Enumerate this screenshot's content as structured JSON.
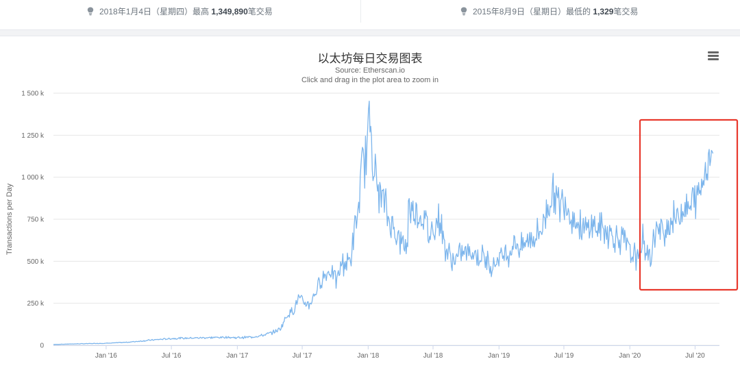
{
  "stats": {
    "high": {
      "prefix": "2018年1月4日（星期四）最高",
      "value": "1,349,890",
      "suffix": "笔交易"
    },
    "low": {
      "prefix": "2015年8月9日（星期日）最低的",
      "value": "1,329",
      "suffix": "笔交易"
    }
  },
  "menu": {
    "icon": "hamburger-menu-icon"
  },
  "chart_data": {
    "type": "line",
    "title": "以太坊每日交易图表",
    "subtitle": "Source: Etherscan.io",
    "hint": "Click and drag in the plot area to zoom in",
    "xlabel": "",
    "ylabel": "Transactions per Day",
    "ylim": [
      0,
      1500000
    ],
    "yticks": [
      0,
      250000,
      500000,
      750000,
      1000000,
      1250000,
      1500000
    ],
    "ytick_labels": [
      "0",
      "250 k",
      "500 k",
      "750 k",
      "1 000 k",
      "1 250 k",
      "1 500 k"
    ],
    "xlim": [
      "2015-08-07",
      "2020-09-07"
    ],
    "xticks": [
      "2016-01-01",
      "2016-07-01",
      "2017-01-01",
      "2017-07-01",
      "2018-01-01",
      "2018-07-01",
      "2019-01-01",
      "2019-07-01",
      "2020-01-01",
      "2020-07-01"
    ],
    "xtick_labels": [
      "Jan '16",
      "Jul '16",
      "Jan '17",
      "Jul '17",
      "Jan '18",
      "Jul '18",
      "Jan '19",
      "Jul '19",
      "Jan '20",
      "Jul '20"
    ],
    "grid": true,
    "color": "#7cb5ec",
    "highlight_color": "#e8382c",
    "series": [
      {
        "x": [
          "2015-08-07",
          "2015-10-01",
          "2016-01-01",
          "2016-03-01",
          "2016-05-01",
          "2016-07-01",
          "2016-10-01",
          "2016-12-01",
          "2017-01-01",
          "2017-02-15",
          "2017-03-15",
          "2017-04-15",
          "2017-05-01",
          "2017-05-20",
          "2017-06-10",
          "2017-06-20",
          "2017-07-01",
          "2017-07-20",
          "2017-08-10",
          "2017-08-25",
          "2017-09-05",
          "2017-09-20",
          "2017-10-05",
          "2017-10-20",
          "2017-11-01",
          "2017-11-15",
          "2017-11-25",
          "2017-12-05",
          "2017-12-12",
          "2017-12-20",
          "2017-12-27",
          "2018-01-04",
          "2018-01-10",
          "2018-01-16",
          "2018-01-25",
          "2018-02-05",
          "2018-02-15",
          "2018-02-25",
          "2018-03-10",
          "2018-03-20",
          "2018-04-01",
          "2018-04-10",
          "2018-04-20",
          "2018-04-25",
          "2018-05-01",
          "2018-05-10",
          "2018-05-20",
          "2018-06-01",
          "2018-06-10",
          "2018-06-20",
          "2018-07-01",
          "2018-07-10",
          "2018-07-20",
          "2018-08-01",
          "2018-08-10",
          "2018-08-20",
          "2018-09-01",
          "2018-09-15",
          "2018-10-01",
          "2018-10-15",
          "2018-11-01",
          "2018-11-15",
          "2018-12-01",
          "2018-12-15",
          "2019-01-01",
          "2019-01-15",
          "2019-02-01",
          "2019-02-15",
          "2019-03-01",
          "2019-03-15",
          "2019-04-01",
          "2019-04-15",
          "2019-05-01",
          "2019-05-10",
          "2019-05-20",
          "2019-06-01",
          "2019-06-10",
          "2019-06-20",
          "2019-07-01",
          "2019-07-15",
          "2019-08-01",
          "2019-08-15",
          "2019-09-01",
          "2019-09-15",
          "2019-10-01",
          "2019-10-15",
          "2019-11-01",
          "2019-11-15",
          "2019-12-01",
          "2019-12-15",
          "2019-12-25",
          "2020-01-05",
          "2020-01-15",
          "2020-01-25",
          "2020-02-05",
          "2020-02-15",
          "2020-03-01",
          "2020-03-12",
          "2020-03-25",
          "2020-04-05",
          "2020-04-20",
          "2020-05-01",
          "2020-05-15",
          "2020-06-01",
          "2020-06-15",
          "2020-06-25",
          "2020-07-05",
          "2020-07-15",
          "2020-07-25",
          "2020-08-05",
          "2020-08-15",
          "2020-08-20"
        ],
        "y": [
          5000,
          8000,
          12000,
          18000,
          30000,
          40000,
          45000,
          48000,
          45000,
          50000,
          60000,
          80000,
          100000,
          180000,
          220000,
          280000,
          260000,
          240000,
          330000,
          400000,
          420000,
          450000,
          380000,
          500000,
          480000,
          530000,
          700000,
          800000,
          1000000,
          1100000,
          1150000,
          1349890,
          1280000,
          1100000,
          950000,
          900000,
          850000,
          760000,
          700000,
          680000,
          620000,
          600000,
          580000,
          900000,
          780000,
          820000,
          780000,
          760000,
          750000,
          650000,
          700000,
          720000,
          760000,
          600000,
          560000,
          520000,
          500000,
          540000,
          560000,
          550000,
          540000,
          520000,
          500000,
          480000,
          520000,
          540000,
          560000,
          620000,
          580000,
          600000,
          640000,
          650000,
          700000,
          780000,
          850000,
          900000,
          880000,
          820000,
          900000,
          800000,
          750000,
          700000,
          680000,
          720000,
          700000,
          690000,
          680000,
          650000,
          640000,
          620000,
          600000,
          520000,
          560000,
          480000,
          650000,
          560000,
          520000,
          700000,
          660000,
          680000,
          720000,
          760000,
          760000,
          820000,
          800000,
          860000,
          880000,
          920000,
          1000000,
          1100000,
          1180000,
          1150000
        ]
      }
    ]
  }
}
